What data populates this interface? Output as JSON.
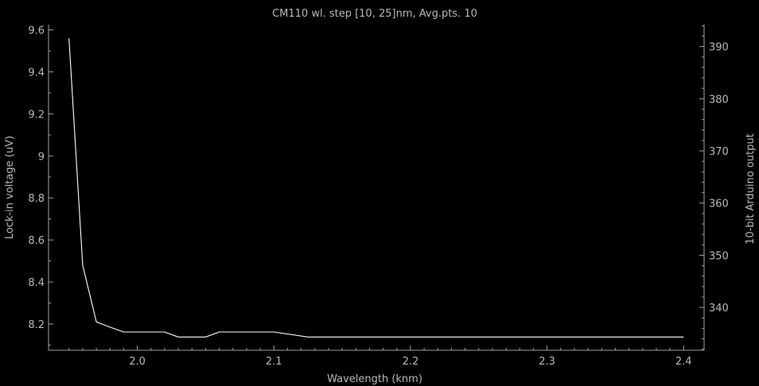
{
  "chart_data": {
    "type": "line",
    "title": "CM110 wl. step [10, 25]nm, Avg.pts. 10",
    "xlabel": "Wavelength (knm)",
    "ylabel": "Lock-in voltage (uV)",
    "y2label": "10-bit Arduino output",
    "xlim": [
      1.935,
      2.415
    ],
    "ylim": [
      8.075,
      9.625
    ],
    "y2lim": [
      331.8,
      394.2
    ],
    "x_ticks": [
      2.0,
      2.1,
      2.2,
      2.3,
      2.4
    ],
    "x_tick_labels": [
      "2.0",
      "2.1",
      "2.2",
      "2.3",
      "2.4"
    ],
    "y_ticks": [
      8.2,
      8.4,
      8.6,
      8.8,
      9.0,
      9.2,
      9.4,
      9.6
    ],
    "y_tick_labels": [
      "8.2",
      "8.4",
      "8.6",
      "8.8",
      "9",
      "9.2",
      "9.4",
      "9.6"
    ],
    "y2_ticks": [
      340,
      350,
      360,
      370,
      380,
      390
    ],
    "y2_tick_labels": [
      "340",
      "350",
      "360",
      "370",
      "380",
      "390"
    ],
    "grid": false,
    "series": [
      {
        "axis": "left",
        "color": "#ffffff",
        "x": [
          1.95,
          1.96,
          1.97,
          1.98,
          1.99,
          2.0,
          2.01,
          2.02,
          2.03,
          2.04,
          2.05,
          2.06,
          2.07,
          2.08,
          2.09,
          2.1,
          2.125,
          2.15,
          2.175,
          2.2,
          2.225,
          2.25,
          2.275,
          2.3,
          2.325,
          2.35,
          2.375,
          2.4
        ],
        "y": [
          9.56,
          8.48,
          8.21,
          8.185,
          8.162,
          8.162,
          8.162,
          8.162,
          8.138,
          8.138,
          8.138,
          8.162,
          8.162,
          8.162,
          8.162,
          8.162,
          8.138,
          8.138,
          8.138,
          8.138,
          8.138,
          8.138,
          8.138,
          8.138,
          8.138,
          8.138,
          8.138,
          8.138
        ]
      }
    ]
  },
  "colors": {
    "background": "#000000",
    "axis": "#a0a0a0",
    "text": "#b8b8b8",
    "line": "#ffffff"
  }
}
